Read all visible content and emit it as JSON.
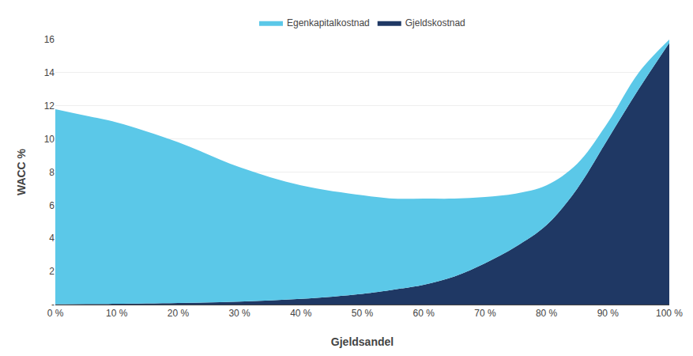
{
  "chart_data": {
    "type": "area",
    "stacked": true,
    "xlabel": "Gjeldsandel",
    "ylabel": "WACC %",
    "x": [
      0,
      5,
      10,
      20,
      30,
      40,
      50,
      55,
      60,
      65,
      70,
      75,
      80,
      85,
      90,
      95,
      100
    ],
    "series": [
      {
        "name": "Gjeldskostnad",
        "color": "#1F3864",
        "values": [
          0.02,
          0.03,
          0.05,
          0.1,
          0.18,
          0.35,
          0.65,
          0.9,
          1.2,
          1.7,
          2.5,
          3.5,
          4.8,
          7.0,
          10.0,
          13.0,
          15.8
        ]
      },
      {
        "name": "Egenkapitalkostnad",
        "color": "#5BC8E8",
        "values": [
          11.78,
          11.37,
          10.95,
          9.7,
          8.12,
          6.85,
          5.95,
          5.5,
          5.2,
          4.7,
          4.0,
          3.2,
          2.4,
          1.5,
          1.0,
          1.0,
          0.2
        ]
      }
    ],
    "xlim": [
      0,
      100
    ],
    "xticks": [
      {
        "value": 0,
        "label": "0 %"
      },
      {
        "value": 10,
        "label": "10 %"
      },
      {
        "value": 20,
        "label": "20 %"
      },
      {
        "value": 30,
        "label": "30 %"
      },
      {
        "value": 40,
        "label": "40 %"
      },
      {
        "value": 50,
        "label": "50 %"
      },
      {
        "value": 60,
        "label": "60 %"
      },
      {
        "value": 70,
        "label": "70 %"
      },
      {
        "value": 80,
        "label": "80 %"
      },
      {
        "value": 90,
        "label": "90 %"
      },
      {
        "value": 100,
        "label": "100 %"
      }
    ],
    "ylim": [
      0,
      16
    ],
    "yticks": [
      {
        "value": 0,
        "label": "-"
      },
      2,
      4,
      6,
      8,
      10,
      12,
      14,
      16
    ],
    "grid": true,
    "legend": "top"
  }
}
